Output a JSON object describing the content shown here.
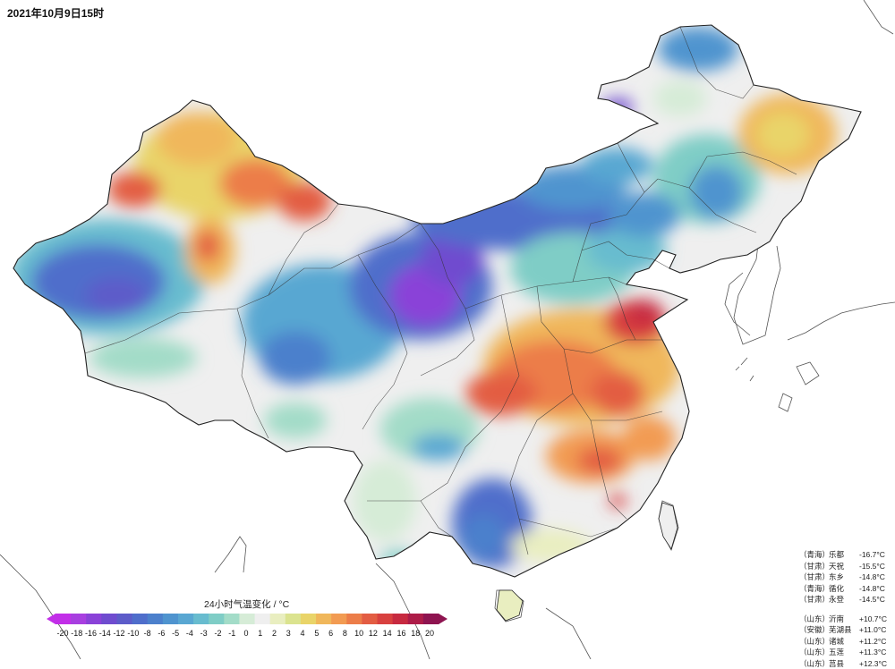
{
  "header": {
    "timestamp": "2021年10月9日15时"
  },
  "legend": {
    "title": "24小时气温变化 / °C",
    "ticks": [
      "-20",
      "-18",
      "-16",
      "-14",
      "-12",
      "-10",
      "-8",
      "-6",
      "-5",
      "-4",
      "-3",
      "-2",
      "-1",
      "0",
      "1",
      "2",
      "3",
      "4",
      "5",
      "6",
      "8",
      "10",
      "12",
      "14",
      "16",
      "18",
      "20"
    ],
    "colors": [
      "#c22fe8",
      "#a83fe0",
      "#8a42d8",
      "#6f4ccf",
      "#5d5cc9",
      "#4f6ecb",
      "#4c80cc",
      "#4f94cf",
      "#59a7d2",
      "#68bccf",
      "#7fcdc6",
      "#a3dcc8",
      "#d6ecd7",
      "#efefef",
      "#e9eec0",
      "#dbe38f",
      "#e9d469",
      "#f0b75b",
      "#f29b52",
      "#ec7d49",
      "#e35d43",
      "#d8413f",
      "#c72a40",
      "#ad1c48",
      "#8e1450"
    ]
  },
  "stations": {
    "coldest": [
      {
        "province": "（青海）",
        "name": "乐都",
        "value": "-16.7°C"
      },
      {
        "province": "（甘肃）",
        "name": "天祝",
        "value": "-15.5°C"
      },
      {
        "province": "（甘肃）",
        "name": "东乡",
        "value": "-14.8°C"
      },
      {
        "province": "（青海）",
        "name": "循化",
        "value": "-14.8°C"
      },
      {
        "province": "（甘肃）",
        "name": "永登",
        "value": "-14.5°C"
      }
    ],
    "warmest": [
      {
        "province": "（山东）",
        "name": "沂南",
        "value": "+10.7°C"
      },
      {
        "province": "（安徽）",
        "name": "芜湖县",
        "value": "+11.0°C"
      },
      {
        "province": "（山东）",
        "name": "诸城",
        "value": "+11.2°C"
      },
      {
        "province": "（山东）",
        "name": "五莲",
        "value": "+11.3°C"
      },
      {
        "province": "（山东）",
        "name": "莒县",
        "value": "+12.3°C"
      }
    ]
  }
}
